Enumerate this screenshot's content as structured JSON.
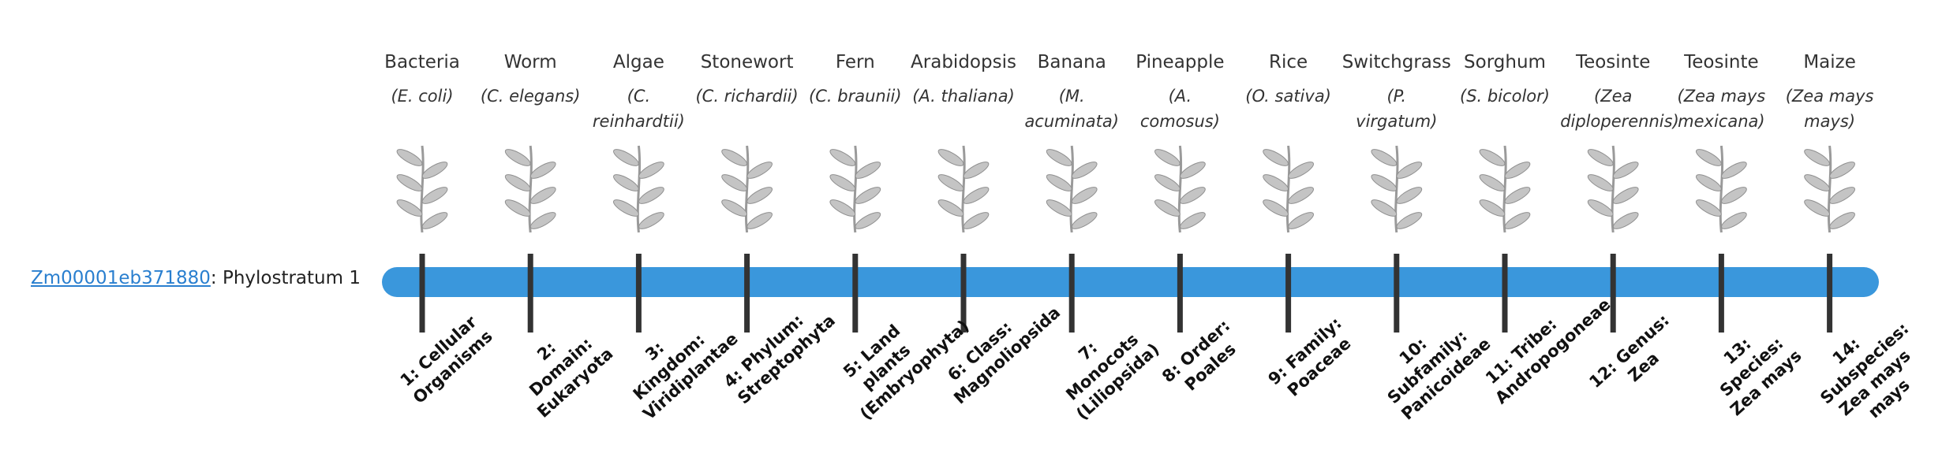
{
  "gene": {
    "id": "Zm00001eb371880",
    "label": ": Phylostratum 1"
  },
  "organisms": [
    {
      "name": "Bacteria",
      "scientific": "(E. coli)",
      "stratum": "1: Cellular Organisms"
    },
    {
      "name": "Worm",
      "scientific": "(C. elegans)",
      "stratum": "2: Domain: Eukaryota"
    },
    {
      "name": "Algae",
      "scientific": "(C. reinhardtii)",
      "stratum": "3: Kingdom: Viridiplantae"
    },
    {
      "name": "Stonewort",
      "scientific": "(C. richardii)",
      "stratum": "4: Phylum: Streptophyta"
    },
    {
      "name": "Fern",
      "scientific": "(C. braunii)",
      "stratum": "5: Land plants (Embryophyta)"
    },
    {
      "name": "Arabidopsis",
      "scientific": "(A. thaliana)",
      "stratum": "6: Class: Magnoliopsida"
    },
    {
      "name": "Banana",
      "scientific": "(M. acuminata)",
      "stratum": "7: Monocots (Liliopsida)"
    },
    {
      "name": "Pineapple",
      "scientific": "(A. comosus)",
      "stratum": "8: Order: Poales"
    },
    {
      "name": "Rice",
      "scientific": "(O. sativa)",
      "stratum": "9: Family: Poaceae"
    },
    {
      "name": "Switchgrass",
      "scientific": "(P. virgatum)",
      "stratum": "10: Subfamily: Panicoideae"
    },
    {
      "name": "Sorghum",
      "scientific": "(S. bicolor)",
      "stratum": "11: Tribe: Andropogoneae"
    },
    {
      "name": "Teosinte",
      "scientific": "(Zea diploperennis)",
      "stratum": "12: Genus: Zea"
    },
    {
      "name": "Teosinte",
      "scientific": "(Zea mays mexicana)",
      "stratum": "13: Species: Zea mays"
    },
    {
      "name": "Maize",
      "scientific": "(Zea mays mays)",
      "stratum": "14: Subspecies: Zea mays mays"
    }
  ]
}
